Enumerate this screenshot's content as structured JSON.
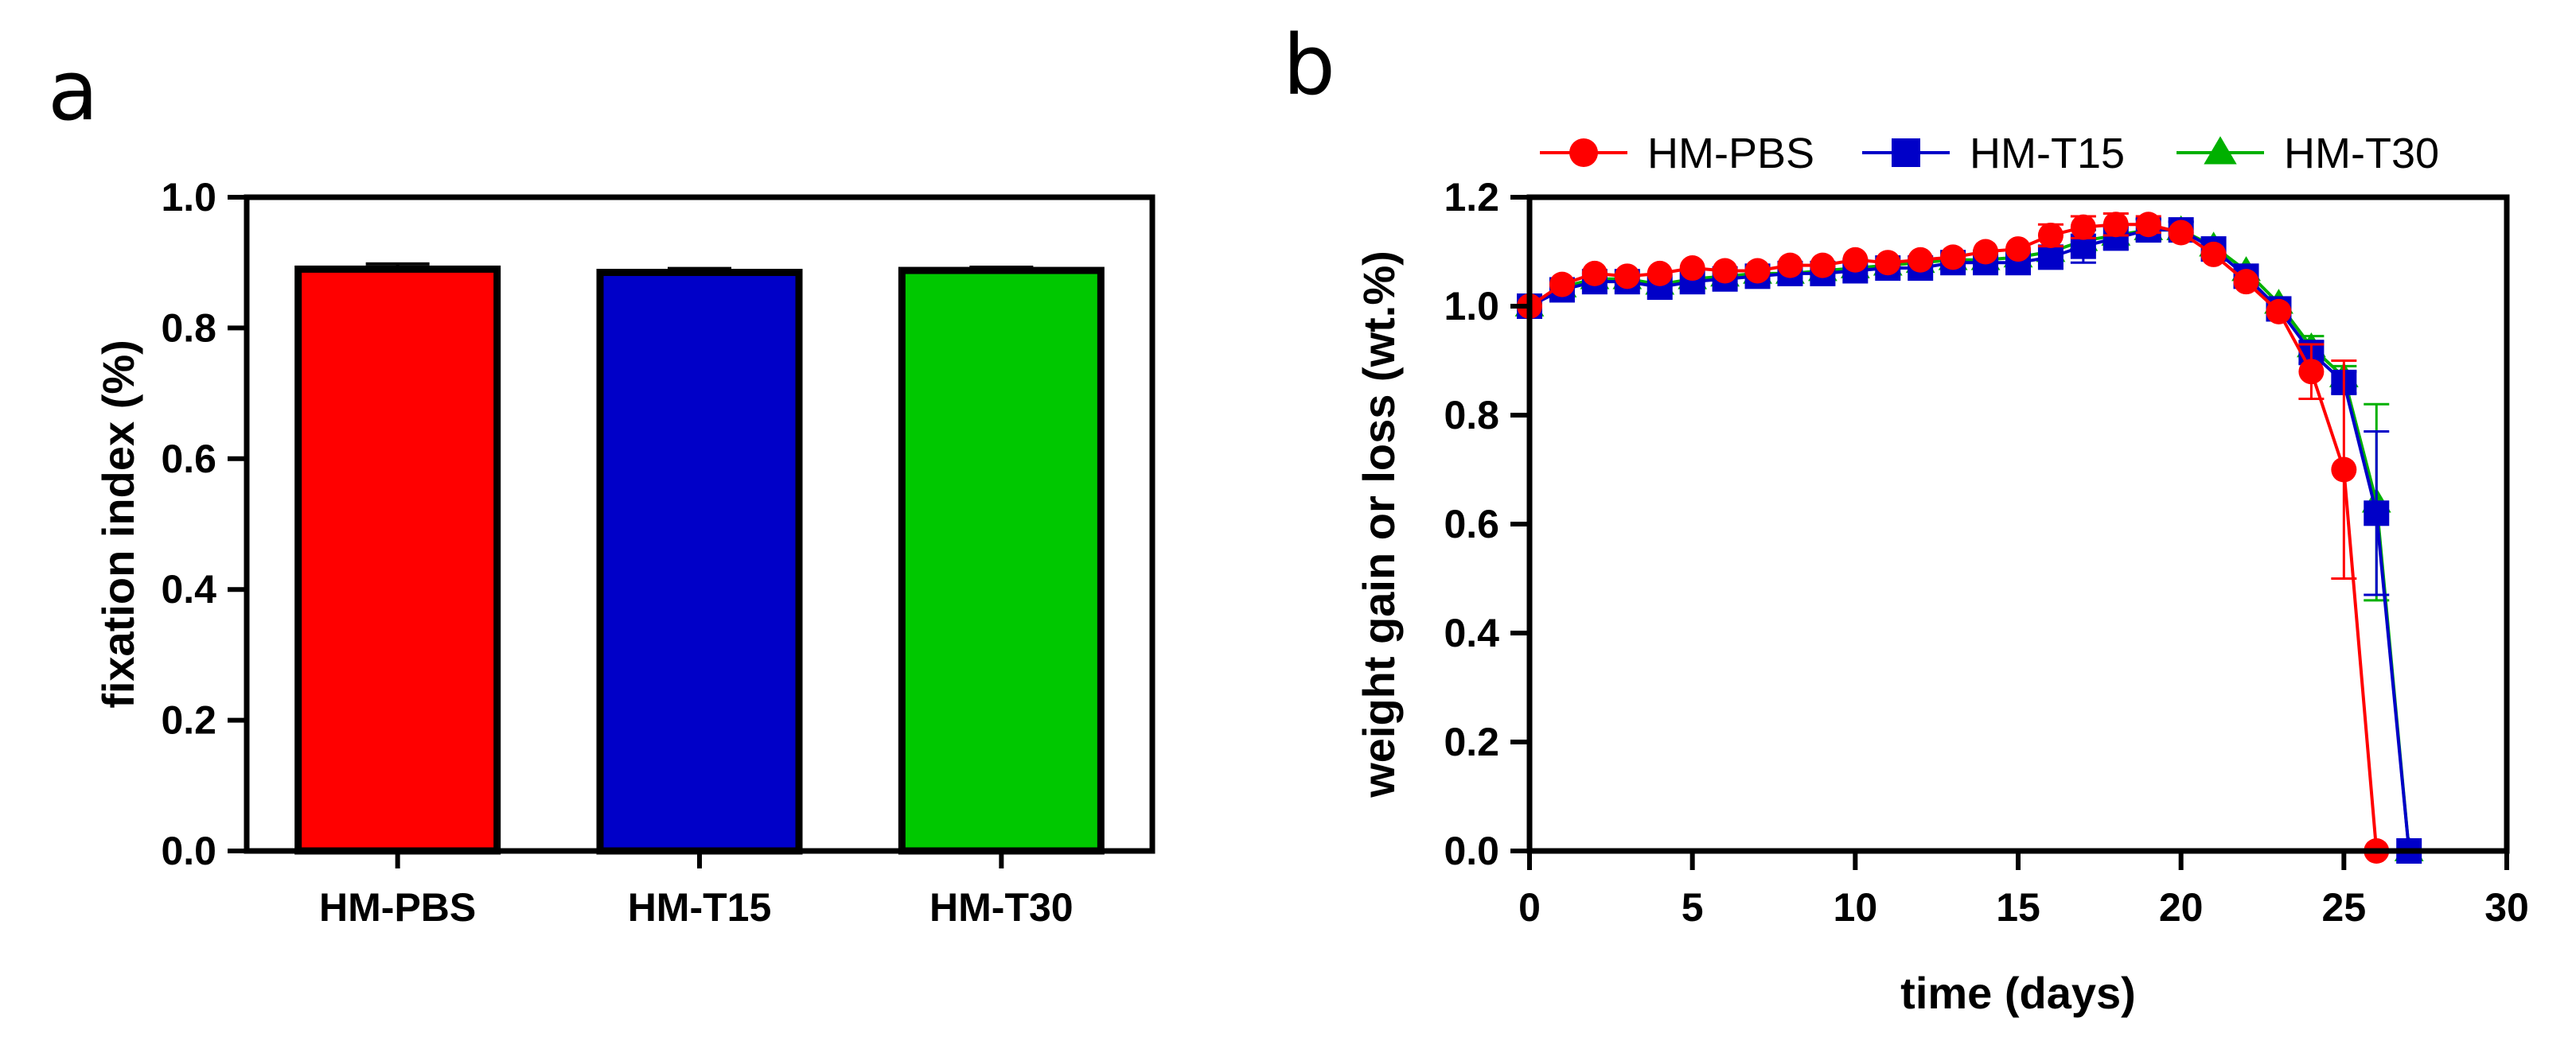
{
  "figure": {
    "panels": [
      {
        "id": "a",
        "letter": "a"
      },
      {
        "id": "b",
        "letter": "b"
      }
    ]
  },
  "chart_data": [
    {
      "panel": "a",
      "type": "bar",
      "categories": [
        "HM-PBS",
        "HM-T15",
        "HM-T30"
      ],
      "values": [
        0.89,
        0.885,
        0.888
      ],
      "errors": [
        0.008,
        0.006,
        0.005
      ],
      "colors": [
        "#ff0000",
        "#0000c8",
        "#00c800"
      ],
      "title": "",
      "xlabel": "",
      "ylabel": "fixation index (%)",
      "ylim": [
        0,
        1.0
      ],
      "yticks": [
        0.0,
        0.2,
        0.4,
        0.6,
        0.8,
        1.0
      ],
      "ytick_labels": [
        "0.0",
        "0.2",
        "0.4",
        "0.6",
        "0.8",
        "1.0"
      ],
      "grid": false
    },
    {
      "panel": "b",
      "type": "line",
      "title": "",
      "xlabel": "time (days)",
      "ylabel": "weight gain or loss (wt.%)",
      "xlim": [
        0,
        30
      ],
      "ylim": [
        0,
        1.2
      ],
      "xticks": [
        0,
        5,
        10,
        15,
        20,
        25,
        30
      ],
      "xtick_labels": [
        "0",
        "5",
        "10",
        "15",
        "20",
        "25",
        "30"
      ],
      "yticks": [
        0.0,
        0.2,
        0.4,
        0.6,
        0.8,
        1.0,
        1.2
      ],
      "ytick_labels": [
        "0.0",
        "0.2",
        "0.4",
        "0.6",
        "0.8",
        "1.0",
        "1.2"
      ],
      "legend_position": "top",
      "grid": false,
      "series": [
        {
          "name": "HM-T30",
          "color": "#00b000",
          "marker": "triangle",
          "x": [
            0,
            1,
            2,
            3,
            4,
            5,
            6,
            7,
            8,
            9,
            10,
            11,
            12,
            13,
            14,
            15,
            16,
            17,
            18,
            19,
            20,
            21,
            22,
            23,
            24,
            25,
            26,
            27
          ],
          "y": [
            1.0,
            1.035,
            1.05,
            1.05,
            1.04,
            1.05,
            1.055,
            1.06,
            1.06,
            1.065,
            1.07,
            1.075,
            1.08,
            1.085,
            1.085,
            1.09,
            1.1,
            1.12,
            1.13,
            1.14,
            1.14,
            1.11,
            1.065,
            1.005,
            0.925,
            0.87,
            0.64,
            0.0
          ],
          "err": [
            0,
            0.005,
            0.005,
            0.005,
            0.005,
            0.005,
            0.005,
            0.005,
            0.005,
            0.005,
            0.005,
            0.005,
            0.005,
            0.005,
            0.005,
            0.005,
            0.01,
            0.02,
            0.02,
            0.02,
            0.015,
            0.01,
            0.01,
            0.01,
            0.02,
            0.02,
            0.18,
            0
          ]
        },
        {
          "name": "HM-T15",
          "color": "#0000c8",
          "marker": "square",
          "x": [
            0,
            1,
            2,
            3,
            4,
            5,
            6,
            7,
            8,
            9,
            10,
            11,
            12,
            13,
            14,
            15,
            16,
            17,
            18,
            19,
            20,
            21,
            22,
            23,
            24,
            25,
            26,
            27
          ],
          "y": [
            1.0,
            1.03,
            1.045,
            1.045,
            1.035,
            1.045,
            1.05,
            1.055,
            1.06,
            1.06,
            1.065,
            1.07,
            1.07,
            1.08,
            1.08,
            1.08,
            1.09,
            1.11,
            1.125,
            1.14,
            1.14,
            1.105,
            1.055,
            0.995,
            0.915,
            0.86,
            0.62,
            0.0
          ],
          "err": [
            0,
            0.005,
            0.005,
            0.005,
            0.005,
            0.005,
            0.005,
            0.005,
            0.005,
            0.005,
            0.005,
            0.005,
            0.005,
            0.005,
            0.005,
            0.005,
            0.01,
            0.03,
            0.02,
            0.02,
            0.015,
            0.01,
            0.01,
            0.01,
            0.02,
            0.02,
            0.15,
            0
          ]
        },
        {
          "name": "HM-PBS",
          "color": "#ff0000",
          "marker": "circle",
          "x": [
            0,
            1,
            2,
            3,
            4,
            5,
            6,
            7,
            8,
            9,
            10,
            11,
            12,
            13,
            14,
            15,
            16,
            17,
            18,
            19,
            20,
            21,
            22,
            23,
            24,
            25,
            26
          ],
          "y": [
            1.0,
            1.04,
            1.06,
            1.055,
            1.06,
            1.07,
            1.065,
            1.065,
            1.075,
            1.075,
            1.085,
            1.08,
            1.085,
            1.09,
            1.1,
            1.105,
            1.13,
            1.145,
            1.15,
            1.15,
            1.135,
            1.095,
            1.045,
            0.99,
            0.88,
            0.7,
            0.0
          ],
          "err": [
            0,
            0.005,
            0.005,
            0.005,
            0.005,
            0.005,
            0.005,
            0.005,
            0.005,
            0.005,
            0.005,
            0.005,
            0.005,
            0.005,
            0.005,
            0.01,
            0.02,
            0.02,
            0.02,
            0.015,
            0.01,
            0.01,
            0.01,
            0.01,
            0.05,
            0.2,
            0
          ]
        }
      ],
      "legend_order": [
        "HM-PBS",
        "HM-T15",
        "HM-T30"
      ]
    }
  ]
}
